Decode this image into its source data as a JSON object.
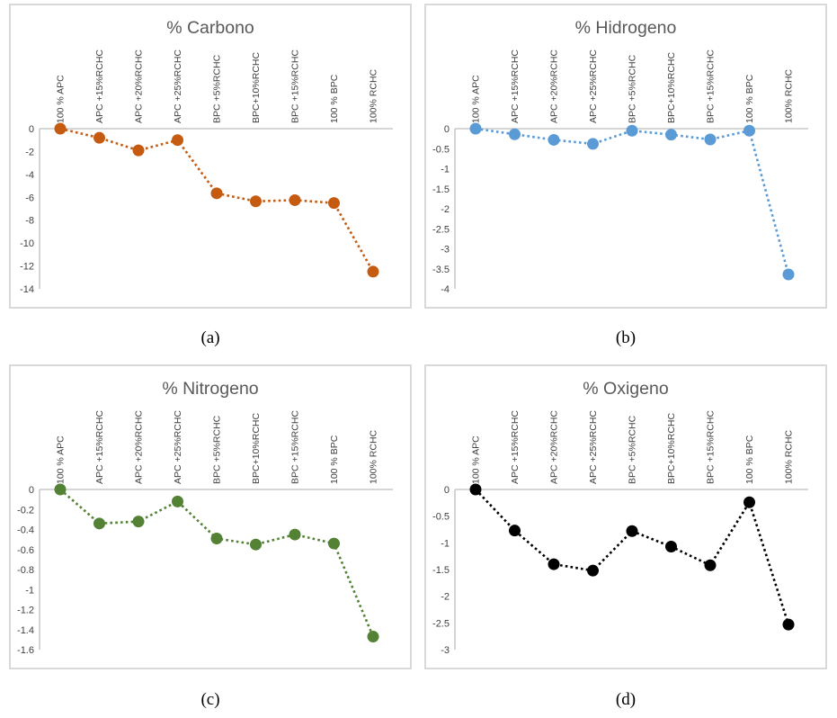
{
  "figure": {
    "captions": [
      "(a)",
      "(b)",
      "(c)",
      "(d)"
    ]
  },
  "style": {
    "axis_color": "#C9C9C9",
    "panel_border_color": "#D9D9D9",
    "tick_label_color": "#404040",
    "category_label_color": "#404040",
    "title_color": "#595959"
  },
  "chart_data": [
    {
      "type": "line",
      "title": "% Carbono",
      "marker_color": "#C55A11",
      "line_style": "dotted",
      "legend": "none",
      "grid": "none",
      "categories": [
        "100 % APC",
        "APC +15%RCHC",
        "APC +20%RCHC",
        "APC +25%RCHC",
        "BPC +5%RCHC",
        "BPC+10%RCHC",
        "BPC +15%RCHC",
        "100 % BPC",
        "100% RCHC"
      ],
      "values": [
        0,
        -0.8,
        -1.9,
        -1.0,
        -5.65,
        -6.35,
        -6.25,
        -6.5,
        -12.5
      ],
      "ylim": [
        -14,
        0
      ],
      "ytick_labels": [
        "0",
        "-2",
        "-4",
        "-6",
        "-8",
        "-10",
        "-12",
        "-14"
      ]
    },
    {
      "type": "line",
      "title": "% Hidrogeno",
      "marker_color": "#5B9BD5",
      "line_style": "dotted",
      "legend": "none",
      "grid": "none",
      "categories": [
        "100 % APC",
        "APC +15%RCHC",
        "APC +20%RCHC",
        "APC +25%RCHC",
        "BPC +5%RCHC",
        "BPC+10%RCHC",
        "BPC +15%RCHC",
        "100 % BPC",
        "100% RCHC"
      ],
      "values": [
        0,
        -0.14,
        -0.28,
        -0.38,
        -0.05,
        -0.15,
        -0.27,
        -0.05,
        -3.64
      ],
      "ylim": [
        -4,
        0
      ],
      "ytick_labels": [
        "0",
        "-0.5",
        "-1",
        "-1.5",
        "-2",
        "-2.5",
        "-3",
        "-3.5",
        "-4"
      ]
    },
    {
      "type": "line",
      "title": "% Nitrogeno",
      "marker_color": "#548235",
      "line_style": "dotted",
      "legend": "none",
      "grid": "none",
      "categories": [
        "100 % APC",
        "APC +15%RCHC",
        "APC +20%RCHC",
        "APC +25%RCHC",
        "BPC +5%RCHC",
        "BPC+10%RCHC",
        "BPC +15%RCHC",
        "100 % BPC",
        "100% RCHC"
      ],
      "values": [
        0,
        -0.34,
        -0.32,
        -0.12,
        -0.49,
        -0.55,
        -0.45,
        -0.54,
        -1.47
      ],
      "ylim": [
        -1.6,
        0
      ],
      "ytick_labels": [
        "0",
        "-0.2",
        "-0.4",
        "-0.6",
        "-0.8",
        "-1",
        "-1.2",
        "-1.4",
        "-1.6"
      ]
    },
    {
      "type": "line",
      "title": "% Oxigeno",
      "marker_color": "#000000",
      "line_style": "dotted",
      "legend": "none",
      "grid": "none",
      "categories": [
        "100 % APC",
        "APC +15%RCHC",
        "APC +20%RCHC",
        "APC +25%RCHC",
        "BPC +5%RCHC",
        "BPC+10%RCHC",
        "BPC +15%RCHC",
        "100 % BPC",
        "100% RCHC"
      ],
      "values": [
        0,
        -0.77,
        -1.4,
        -1.52,
        -0.78,
        -1.07,
        -1.42,
        -0.24,
        -2.53
      ],
      "ylim": [
        -3,
        0
      ],
      "ytick_labels": [
        "0",
        "-0.5",
        "-1",
        "-1.5",
        "-2",
        "-2.5",
        "-3"
      ]
    }
  ]
}
